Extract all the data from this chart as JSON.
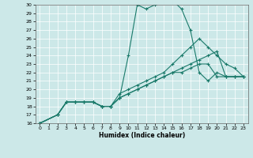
{
  "xlabel": "Humidex (Indice chaleur)",
  "bg_color": "#cce8e8",
  "line_color": "#1a7a6a",
  "xlim": [
    -0.5,
    23.5
  ],
  "ylim": [
    16,
    30
  ],
  "yticks": [
    16,
    17,
    18,
    19,
    20,
    21,
    22,
    23,
    24,
    25,
    26,
    27,
    28,
    29,
    30
  ],
  "xticks": [
    0,
    1,
    2,
    3,
    4,
    5,
    6,
    7,
    8,
    9,
    10,
    11,
    12,
    13,
    14,
    15,
    16,
    17,
    18,
    19,
    20,
    21,
    22,
    23
  ],
  "line1_x": [
    0,
    2,
    3,
    4,
    5,
    6,
    7,
    8,
    9,
    10,
    11,
    12,
    13,
    14,
    15,
    16,
    17,
    18,
    19,
    20,
    21,
    22,
    23
  ],
  "line1_y": [
    16,
    17,
    18.5,
    18.5,
    18.5,
    18.5,
    18,
    18,
    19,
    24,
    30,
    29.5,
    30,
    30.5,
    30.5,
    29.5,
    27,
    22,
    21,
    22,
    21.5,
    21.5,
    21.5
  ],
  "line2_x": [
    0,
    2,
    3,
    4,
    5,
    6,
    7,
    8,
    9,
    10,
    11,
    12,
    13,
    14,
    15,
    16,
    17,
    18,
    19,
    20,
    21,
    22,
    23
  ],
  "line2_y": [
    16,
    17,
    18.5,
    18.5,
    18.5,
    18.5,
    18,
    18,
    19.5,
    20,
    20.5,
    21,
    21.5,
    22,
    23,
    24,
    25,
    26,
    25,
    24,
    23,
    22.5,
    21.5
  ],
  "line3_x": [
    0,
    2,
    3,
    4,
    5,
    6,
    7,
    8,
    9,
    10,
    11,
    12,
    13,
    14,
    15,
    16,
    17,
    18,
    19,
    20,
    21,
    22,
    23
  ],
  "line3_y": [
    16,
    17,
    18.5,
    18.5,
    18.5,
    18.5,
    18,
    18,
    19,
    19.5,
    20,
    20.5,
    21,
    21.5,
    22,
    22.5,
    23,
    23.5,
    24,
    24.5,
    21.5,
    21.5,
    21.5
  ],
  "line4_x": [
    0,
    2,
    3,
    4,
    5,
    6,
    7,
    8,
    9,
    10,
    11,
    12,
    13,
    14,
    15,
    16,
    17,
    18,
    19,
    20,
    21,
    22,
    23
  ],
  "line4_y": [
    16,
    17,
    18.5,
    18.5,
    18.5,
    18.5,
    18,
    18,
    19,
    19.5,
    20,
    20.5,
    21,
    21.5,
    22,
    22,
    22.5,
    23,
    23,
    21.5,
    21.5,
    21.5,
    21.5
  ]
}
